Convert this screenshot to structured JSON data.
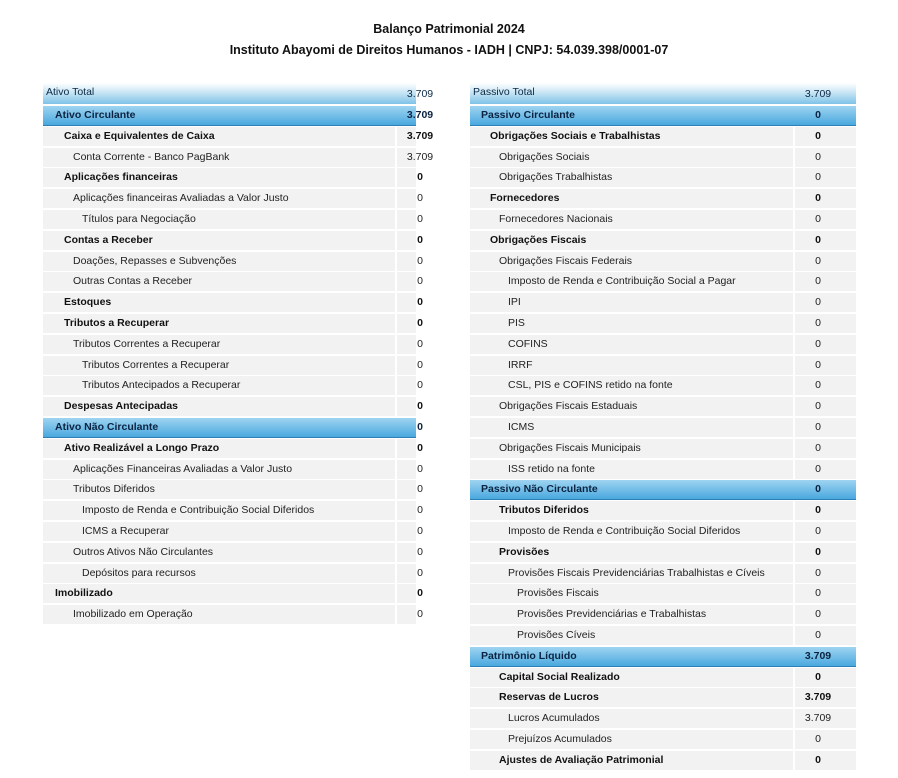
{
  "header": {
    "title": "Balanço Patrimonial 2024",
    "subtitle": "Instituto Abayomi de Direitos Humanos - IADH | CNPJ: 54.039.398/0001-07"
  },
  "tables": [
    {
      "rows": [
        {
          "label": "Ativo Total",
          "value": "3.709"
        },
        {
          "label": "Ativo Circulante",
          "value": "3.709"
        },
        {
          "label": "Caixa e Equivalentes de Caixa",
          "value": "3.709"
        },
        {
          "label": "Conta Corrente - Banco PagBank",
          "value": "3.709"
        },
        {
          "label": "Aplicações financeiras",
          "value": "0"
        },
        {
          "label": "Aplicações financeiras Avaliadas a Valor Justo",
          "value": "0"
        },
        {
          "label": "Títulos para Negociação",
          "value": "0"
        },
        {
          "label": "Contas a Receber",
          "value": "0"
        },
        {
          "label": "Doações, Repasses e Subvenções",
          "value": "0"
        },
        {
          "label": "Outras Contas a Receber",
          "value": "0"
        },
        {
          "label": "Estoques",
          "value": "0"
        },
        {
          "label": "Tributos a Recuperar",
          "value": "0"
        },
        {
          "label": "Tributos Correntes a Recuperar",
          "value": "0"
        },
        {
          "label": "Tributos Correntes a Recuperar",
          "value": "0"
        },
        {
          "label": "Tributos Antecipados a Recuperar",
          "value": "0"
        },
        {
          "label": "Despesas Antecipadas",
          "value": "0"
        },
        {
          "label": "Ativo Não Circulante",
          "value": "0"
        },
        {
          "label": "Ativo Realizável a Longo Prazo",
          "value": "0"
        },
        {
          "label": "Aplicações Financeiras Avaliadas a Valor Justo",
          "value": "0"
        },
        {
          "label": "Tributos Diferidos",
          "value": "0"
        },
        {
          "label": "Imposto de Renda e Contribuição Social Diferidos",
          "value": "0"
        },
        {
          "label": "ICMS a Recuperar",
          "value": "0"
        },
        {
          "label": "Outros Ativos Não Circulantes",
          "value": "0"
        },
        {
          "label": "Depósitos para recursos",
          "value": "0"
        },
        {
          "label": "Imobilizado",
          "value": "0"
        },
        {
          "label": "Imobilizado em Operação",
          "value": "0"
        }
      ]
    },
    {
      "rows": [
        {
          "label": "Passivo Total",
          "value": "3.709"
        },
        {
          "label": "Passivo Circulante",
          "value": "0"
        },
        {
          "label": "Obrigações Sociais e Trabalhistas",
          "value": "0"
        },
        {
          "label": "Obrigações Sociais",
          "value": "0"
        },
        {
          "label": "Obrigações Trabalhistas",
          "value": "0"
        },
        {
          "label": "Fornecedores",
          "value": "0"
        },
        {
          "label": "Fornecedores Nacionais",
          "value": "0"
        },
        {
          "label": "Obrigações Fiscais",
          "value": "0"
        },
        {
          "label": "Obrigações Fiscais Federais",
          "value": "0"
        },
        {
          "label": "Imposto de Renda e Contribuição Social a Pagar",
          "value": "0"
        },
        {
          "label": "IPI",
          "value": "0"
        },
        {
          "label": "PIS",
          "value": "0"
        },
        {
          "label": "COFINS",
          "value": "0"
        },
        {
          "label": "IRRF",
          "value": "0"
        },
        {
          "label": "CSL, PIS e COFINS retido na fonte",
          "value": "0"
        },
        {
          "label": "Obrigações Fiscais Estaduais",
          "value": "0"
        },
        {
          "label": "ICMS",
          "value": "0"
        },
        {
          "label": "Obrigações Fiscais Municipais",
          "value": "0"
        },
        {
          "label": "ISS retido na fonte",
          "value": "0"
        },
        {
          "label": "Passivo Não Circulante",
          "value": "0"
        },
        {
          "label": "Tributos Diferidos",
          "value": "0"
        },
        {
          "label": "Imposto de Renda e Contribuição Social Diferidos",
          "value": "0"
        },
        {
          "label": "Provisões",
          "value": "0"
        },
        {
          "label": "Provisões Fiscais Previdenciárias Trabalhistas e Cíveis",
          "value": "0"
        },
        {
          "label": "Provisões Fiscais",
          "value": "0"
        },
        {
          "label": "Provisões Previdenciárias e Trabalhistas",
          "value": "0"
        },
        {
          "label": "Provisões Cíveis",
          "value": "0"
        },
        {
          "label": "Patrimônio Líquido",
          "value": "3.709"
        },
        {
          "label": "Capital Social Realizado",
          "value": "0"
        },
        {
          "label": "Reservas de Lucros",
          "value": "3.709"
        },
        {
          "label": "Lucros Acumulados",
          "value": "3.709"
        },
        {
          "label": "Prejuízos Acumulados",
          "value": "0"
        },
        {
          "label": "Ajustes de Avaliação Patrimonial",
          "value": "0"
        }
      ]
    }
  ]
}
